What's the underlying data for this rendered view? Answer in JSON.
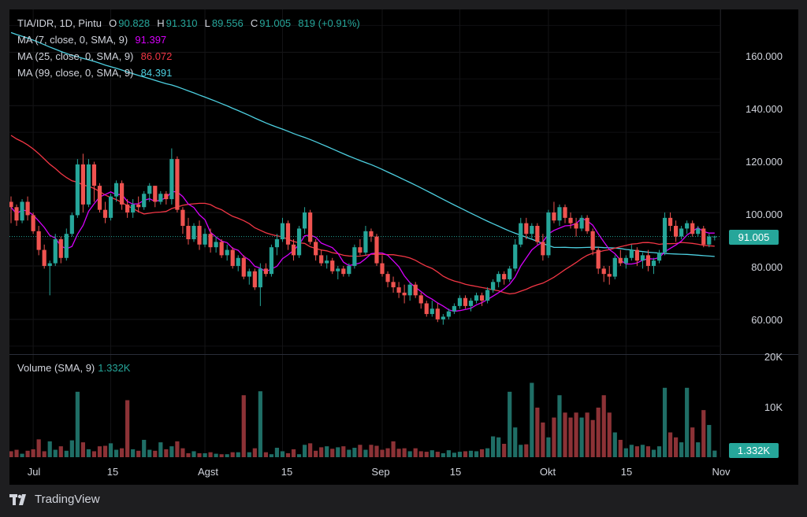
{
  "header": {
    "symbol": "TIA/IDR, 1D, Pintu",
    "o_label": "O",
    "o_value": "90.828",
    "h_label": "H",
    "h_value": "91.310",
    "l_label": "L",
    "l_value": "89.556",
    "c_label": "C",
    "c_value": "91.005",
    "change": "819 (+0.91%)"
  },
  "indicators": [
    {
      "label": "MA (7, close, 0, SMA, 9)",
      "value": "91.397",
      "color": "#d500f9"
    },
    {
      "label": "MA (25, close, 0, SMA, 9)",
      "value": "86.072",
      "color": "#f23645"
    },
    {
      "label": "MA (99, close, 0, SMA, 9)",
      "value": "84.391",
      "color": "#4dd0e1"
    }
  ],
  "volume_legend": {
    "label": "Volume (SMA, 9)",
    "value": "1.332K"
  },
  "price_tag": "91.005",
  "volume_tag": "1.332K",
  "brand": "TradingView",
  "colors": {
    "up": "#26a69a",
    "down": "#ef5350",
    "up_vol": "#1f6e66",
    "down_vol": "#8c3236"
  },
  "chart_data": {
    "type": "candlestick",
    "price_axis": {
      "ticks": [
        "160.000",
        "140.000",
        "120.000",
        "100.000",
        "80.000",
        "60.000"
      ],
      "tick_values": [
        160,
        140,
        120,
        100,
        80,
        60
      ],
      "range": [
        47,
        176
      ]
    },
    "volume_axis": {
      "ticks": [
        "20K",
        "10K"
      ],
      "tick_values": [
        20000,
        10000
      ],
      "range": [
        0,
        20000
      ]
    },
    "x_axis": {
      "labels": [
        "Jul",
        "15",
        "Agst",
        "15",
        "Sep",
        "15",
        "Okt",
        "15",
        "Nov"
      ],
      "label_index": [
        4,
        18,
        35,
        49,
        67,
        81,
        97,
        111,
        128
      ]
    },
    "candles": [
      {
        "o": 104,
        "h": 106,
        "l": 96,
        "c": 102,
        "v": 1200
      },
      {
        "o": 102,
        "h": 103,
        "l": 95,
        "c": 97,
        "v": 1500
      },
      {
        "o": 97,
        "h": 105,
        "l": 96,
        "c": 104,
        "v": 700
      },
      {
        "o": 104,
        "h": 106,
        "l": 97,
        "c": 99,
        "v": 1300
      },
      {
        "o": 99,
        "h": 100,
        "l": 92,
        "c": 93,
        "v": 1600
      },
      {
        "o": 93,
        "h": 95,
        "l": 84,
        "c": 86,
        "v": 3600
      },
      {
        "o": 86,
        "h": 88,
        "l": 79,
        "c": 80,
        "v": 1200
      },
      {
        "o": 80,
        "h": 82,
        "l": 69,
        "c": 81,
        "v": 3200
      },
      {
        "o": 81,
        "h": 92,
        "l": 80,
        "c": 90,
        "v": 1500
      },
      {
        "o": 90,
        "h": 91,
        "l": 81,
        "c": 83,
        "v": 2200
      },
      {
        "o": 83,
        "h": 94,
        "l": 82,
        "c": 92,
        "v": 1300
      },
      {
        "o": 92,
        "h": 100,
        "l": 91,
        "c": 99,
        "v": 3400
      },
      {
        "o": 99,
        "h": 120,
        "l": 98,
        "c": 118,
        "v": 13200
      },
      {
        "o": 118,
        "h": 122,
        "l": 100,
        "c": 103,
        "v": 3000
      },
      {
        "o": 103,
        "h": 120,
        "l": 102,
        "c": 118,
        "v": 1600
      },
      {
        "o": 118,
        "h": 119,
        "l": 104,
        "c": 110,
        "v": 1200
      },
      {
        "o": 110,
        "h": 111,
        "l": 100,
        "c": 101,
        "v": 2200
      },
      {
        "o": 101,
        "h": 104,
        "l": 96,
        "c": 98,
        "v": 2300
      },
      {
        "o": 98,
        "h": 107,
        "l": 97,
        "c": 106,
        "v": 2800
      },
      {
        "o": 106,
        "h": 112,
        "l": 104,
        "c": 111,
        "v": 1500
      },
      {
        "o": 111,
        "h": 112,
        "l": 101,
        "c": 103,
        "v": 1800
      },
      {
        "o": 103,
        "h": 105,
        "l": 98,
        "c": 100,
        "v": 11500
      },
      {
        "o": 100,
        "h": 105,
        "l": 98,
        "c": 103,
        "v": 1600
      },
      {
        "o": 103,
        "h": 106,
        "l": 100,
        "c": 102,
        "v": 1300
      },
      {
        "o": 102,
        "h": 108,
        "l": 101,
        "c": 107,
        "v": 3500
      },
      {
        "o": 107,
        "h": 111,
        "l": 104,
        "c": 110,
        "v": 1500
      },
      {
        "o": 110,
        "h": 110,
        "l": 102,
        "c": 104,
        "v": 1300
      },
      {
        "o": 104,
        "h": 108,
        "l": 103,
        "c": 107,
        "v": 3000
      },
      {
        "o": 107,
        "h": 108,
        "l": 103,
        "c": 105,
        "v": 1600
      },
      {
        "o": 105,
        "h": 124,
        "l": 103,
        "c": 120,
        "v": 2200
      },
      {
        "o": 120,
        "h": 121,
        "l": 100,
        "c": 101,
        "v": 3200
      },
      {
        "o": 101,
        "h": 102,
        "l": 92,
        "c": 95,
        "v": 1800
      },
      {
        "o": 95,
        "h": 98,
        "l": 88,
        "c": 90,
        "v": 800
      },
      {
        "o": 90,
        "h": 96,
        "l": 89,
        "c": 95,
        "v": 1200
      },
      {
        "o": 95,
        "h": 97,
        "l": 86,
        "c": 88,
        "v": 800
      },
      {
        "o": 88,
        "h": 94,
        "l": 87,
        "c": 92,
        "v": 800
      },
      {
        "o": 92,
        "h": 94,
        "l": 85,
        "c": 87,
        "v": 1000
      },
      {
        "o": 87,
        "h": 91,
        "l": 85,
        "c": 89,
        "v": 700
      },
      {
        "o": 89,
        "h": 90,
        "l": 83,
        "c": 84,
        "v": 600
      },
      {
        "o": 84,
        "h": 88,
        "l": 82,
        "c": 86,
        "v": 600
      },
      {
        "o": 86,
        "h": 87,
        "l": 79,
        "c": 80,
        "v": 1000
      },
      {
        "o": 80,
        "h": 84,
        "l": 78,
        "c": 83,
        "v": 1000
      },
      {
        "o": 83,
        "h": 84,
        "l": 75,
        "c": 76,
        "v": 12500
      },
      {
        "o": 76,
        "h": 79,
        "l": 73,
        "c": 78,
        "v": 1000
      },
      {
        "o": 78,
        "h": 79,
        "l": 71,
        "c": 72,
        "v": 1800
      },
      {
        "o": 72,
        "h": 81,
        "l": 65,
        "c": 79,
        "v": 13300
      },
      {
        "o": 79,
        "h": 81,
        "l": 76,
        "c": 77,
        "v": 1000
      },
      {
        "o": 77,
        "h": 88,
        "l": 76,
        "c": 87,
        "v": 600
      },
      {
        "o": 87,
        "h": 92,
        "l": 84,
        "c": 90,
        "v": 1900
      },
      {
        "o": 90,
        "h": 98,
        "l": 89,
        "c": 96,
        "v": 1200
      },
      {
        "o": 96,
        "h": 97,
        "l": 86,
        "c": 88,
        "v": 800
      },
      {
        "o": 88,
        "h": 90,
        "l": 82,
        "c": 84,
        "v": 1600
      },
      {
        "o": 84,
        "h": 95,
        "l": 83,
        "c": 94,
        "v": 600
      },
      {
        "o": 94,
        "h": 102,
        "l": 92,
        "c": 100,
        "v": 2500
      },
      {
        "o": 100,
        "h": 101,
        "l": 88,
        "c": 89,
        "v": 2800
      },
      {
        "o": 89,
        "h": 90,
        "l": 82,
        "c": 84,
        "v": 1300
      },
      {
        "o": 84,
        "h": 86,
        "l": 80,
        "c": 81,
        "v": 2000
      },
      {
        "o": 81,
        "h": 84,
        "l": 79,
        "c": 82,
        "v": 2200
      },
      {
        "o": 82,
        "h": 83,
        "l": 77,
        "c": 78,
        "v": 1700
      },
      {
        "o": 78,
        "h": 80,
        "l": 75,
        "c": 79,
        "v": 2000
      },
      {
        "o": 79,
        "h": 80,
        "l": 76,
        "c": 77,
        "v": 2200
      },
      {
        "o": 77,
        "h": 81,
        "l": 76,
        "c": 80,
        "v": 1500
      },
      {
        "o": 80,
        "h": 88,
        "l": 79,
        "c": 87,
        "v": 1900
      },
      {
        "o": 87,
        "h": 90,
        "l": 84,
        "c": 85,
        "v": 2500
      },
      {
        "o": 85,
        "h": 95,
        "l": 84,
        "c": 93,
        "v": 1500
      },
      {
        "o": 93,
        "h": 94,
        "l": 89,
        "c": 91,
        "v": 2500
      },
      {
        "o": 91,
        "h": 92,
        "l": 80,
        "c": 81,
        "v": 2300
      },
      {
        "o": 81,
        "h": 84,
        "l": 76,
        "c": 77,
        "v": 1500
      },
      {
        "o": 77,
        "h": 78,
        "l": 72,
        "c": 74,
        "v": 1800
      },
      {
        "o": 74,
        "h": 76,
        "l": 70,
        "c": 72,
        "v": 3200
      },
      {
        "o": 72,
        "h": 74,
        "l": 68,
        "c": 70,
        "v": 1700
      },
      {
        "o": 70,
        "h": 73,
        "l": 66,
        "c": 69,
        "v": 1800
      },
      {
        "o": 69,
        "h": 74,
        "l": 67,
        "c": 73,
        "v": 1200
      },
      {
        "o": 73,
        "h": 74,
        "l": 68,
        "c": 69,
        "v": 1800
      },
      {
        "o": 69,
        "h": 70,
        "l": 64,
        "c": 66,
        "v": 1200
      },
      {
        "o": 66,
        "h": 67,
        "l": 61,
        "c": 62,
        "v": 1100
      },
      {
        "o": 62,
        "h": 67,
        "l": 61,
        "c": 64,
        "v": 1400
      },
      {
        "o": 64,
        "h": 66,
        "l": 59,
        "c": 60,
        "v": 1100
      },
      {
        "o": 60,
        "h": 62,
        "l": 58,
        "c": 61,
        "v": 800
      },
      {
        "o": 61,
        "h": 64,
        "l": 60,
        "c": 63,
        "v": 1400
      },
      {
        "o": 63,
        "h": 66,
        "l": 62,
        "c": 65,
        "v": 900
      },
      {
        "o": 65,
        "h": 69,
        "l": 64,
        "c": 68,
        "v": 1100
      },
      {
        "o": 68,
        "h": 69,
        "l": 64,
        "c": 65,
        "v": 1200
      },
      {
        "o": 65,
        "h": 68,
        "l": 63,
        "c": 67,
        "v": 1300
      },
      {
        "o": 67,
        "h": 70,
        "l": 66,
        "c": 69,
        "v": 1200
      },
      {
        "o": 69,
        "h": 70,
        "l": 65,
        "c": 67,
        "v": 1600
      },
      {
        "o": 67,
        "h": 72,
        "l": 66,
        "c": 71,
        "v": 1800
      },
      {
        "o": 71,
        "h": 75,
        "l": 70,
        "c": 74,
        "v": 4200
      },
      {
        "o": 74,
        "h": 78,
        "l": 72,
        "c": 77,
        "v": 4000
      },
      {
        "o": 77,
        "h": 78,
        "l": 73,
        "c": 75,
        "v": 2700
      },
      {
        "o": 75,
        "h": 80,
        "l": 74,
        "c": 79,
        "v": 13200
      },
      {
        "o": 79,
        "h": 90,
        "l": 78,
        "c": 88,
        "v": 6000
      },
      {
        "o": 88,
        "h": 98,
        "l": 87,
        "c": 96,
        "v": 2500
      },
      {
        "o": 96,
        "h": 98,
        "l": 90,
        "c": 92,
        "v": 2600
      },
      {
        "o": 92,
        "h": 96,
        "l": 90,
        "c": 95,
        "v": 15000
      },
      {
        "o": 95,
        "h": 96,
        "l": 88,
        "c": 89,
        "v": 10000
      },
      {
        "o": 89,
        "h": 92,
        "l": 82,
        "c": 84,
        "v": 7000
      },
      {
        "o": 84,
        "h": 101,
        "l": 83,
        "c": 100,
        "v": 4000
      },
      {
        "o": 100,
        "h": 104,
        "l": 96,
        "c": 97,
        "v": 8000
      },
      {
        "o": 97,
        "h": 103,
        "l": 95,
        "c": 102,
        "v": 12500
      },
      {
        "o": 102,
        "h": 103,
        "l": 96,
        "c": 98,
        "v": 9000
      },
      {
        "o": 98,
        "h": 100,
        "l": 94,
        "c": 96,
        "v": 8000
      },
      {
        "o": 96,
        "h": 98,
        "l": 91,
        "c": 94,
        "v": 9000
      },
      {
        "o": 94,
        "h": 99,
        "l": 93,
        "c": 98,
        "v": 8000
      },
      {
        "o": 98,
        "h": 99,
        "l": 92,
        "c": 93,
        "v": 9000
      },
      {
        "o": 93,
        "h": 94,
        "l": 84,
        "c": 86,
        "v": 7500
      },
      {
        "o": 86,
        "h": 87,
        "l": 77,
        "c": 79,
        "v": 10000
      },
      {
        "o": 79,
        "h": 80,
        "l": 74,
        "c": 77,
        "v": 12500
      },
      {
        "o": 77,
        "h": 80,
        "l": 73,
        "c": 76,
        "v": 9000
      },
      {
        "o": 76,
        "h": 84,
        "l": 75,
        "c": 83,
        "v": 5000
      },
      {
        "o": 83,
        "h": 86,
        "l": 80,
        "c": 81,
        "v": 3500
      },
      {
        "o": 81,
        "h": 84,
        "l": 79,
        "c": 83,
        "v": 1800
      },
      {
        "o": 83,
        "h": 88,
        "l": 82,
        "c": 86,
        "v": 2500
      },
      {
        "o": 86,
        "h": 87,
        "l": 80,
        "c": 82,
        "v": 2200
      },
      {
        "o": 82,
        "h": 85,
        "l": 79,
        "c": 84,
        "v": 2500
      },
      {
        "o": 84,
        "h": 86,
        "l": 78,
        "c": 80,
        "v": 2200
      },
      {
        "o": 80,
        "h": 83,
        "l": 77,
        "c": 82,
        "v": 1500
      },
      {
        "o": 82,
        "h": 86,
        "l": 81,
        "c": 85,
        "v": 2200
      },
      {
        "o": 85,
        "h": 100,
        "l": 84,
        "c": 98,
        "v": 14000
      },
      {
        "o": 98,
        "h": 100,
        "l": 93,
        "c": 95,
        "v": 5000
      },
      {
        "o": 95,
        "h": 97,
        "l": 89,
        "c": 91,
        "v": 4000
      },
      {
        "o": 91,
        "h": 95,
        "l": 90,
        "c": 94,
        "v": 3000
      },
      {
        "o": 94,
        "h": 97,
        "l": 92,
        "c": 96,
        "v": 14000
      },
      {
        "o": 96,
        "h": 97,
        "l": 91,
        "c": 92,
        "v": 6000
      },
      {
        "o": 92,
        "h": 95,
        "l": 91,
        "c": 94,
        "v": 3000
      },
      {
        "o": 94,
        "h": 95,
        "l": 87,
        "c": 88,
        "v": 9500
      },
      {
        "o": 88,
        "h": 92,
        "l": 87,
        "c": 91,
        "v": 6500
      },
      {
        "o": 90.828,
        "h": 91.31,
        "l": 89.556,
        "c": 91.005,
        "v": 1332
      }
    ]
  }
}
